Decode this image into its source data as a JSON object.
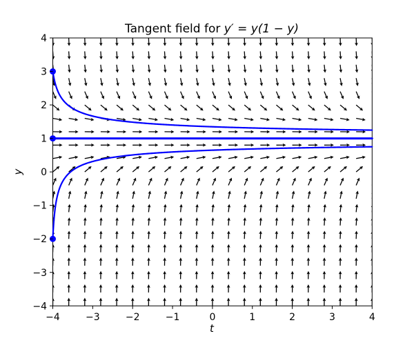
{
  "figure": {
    "title_prefix": "Tangent field for ",
    "title_math": "y′ = y(1 − y)",
    "xlabel": "t",
    "ylabel": "y",
    "background_color": "#ffffff",
    "curve_color": "#0000ff",
    "arrow_color": "#000000",
    "frame_color": "#000000"
  },
  "chart_data": {
    "type": "quiver+line",
    "title": "Tangent field for y′ = y(1 − y)",
    "xlabel": "t",
    "ylabel": "y",
    "xlim": [
      -4,
      4
    ],
    "ylim": [
      -4,
      4
    ],
    "grid": false,
    "legend": false,
    "x_ticks": {
      "values": [
        -4,
        -3,
        -2,
        -1,
        0,
        1,
        2,
        3,
        4
      ],
      "labels": [
        "−4",
        "−3",
        "−2",
        "−1",
        "0",
        "1",
        "2",
        "3",
        "4"
      ]
    },
    "y_ticks": {
      "values": [
        -4,
        -3,
        -2,
        -1,
        0,
        1,
        2,
        3,
        4
      ],
      "labels": [
        "−4",
        "−3",
        "−2",
        "−1",
        "0",
        "1",
        "2",
        "3",
        "4"
      ]
    },
    "quiver": {
      "t_start": -4,
      "t_end": 4,
      "t_step": 0.4,
      "y_start": -4,
      "y_end": 4,
      "y_step": 0.4,
      "pivot": "tail",
      "direction_rendered": "normalized (1, (1-y)^3): horizontal at y=1, tilting down above, up below, near-vertical at |y-1|>2"
    },
    "equilibrium": {
      "y": 1,
      "t_range": [
        -4,
        4
      ],
      "marker_at": [
        -4,
        1
      ]
    },
    "solutions": [
      {
        "t0": -4,
        "y0": 3,
        "u0": 2,
        "marker": true,
        "samples": [
          [
            -4,
            3.0
          ],
          [
            -3.75,
            2.15
          ],
          [
            -3.5,
            2.0
          ],
          [
            -3,
            1.67
          ],
          [
            -2.5,
            1.55
          ],
          [
            -2,
            1.49
          ],
          [
            -1,
            1.4
          ],
          [
            0,
            1.35
          ],
          [
            1,
            1.31
          ],
          [
            2,
            1.29
          ],
          [
            3,
            1.27
          ],
          [
            4,
            1.25
          ]
        ]
      },
      {
        "t0": -4,
        "y0": 1,
        "u0": 0,
        "marker": true,
        "samples": [
          [
            -4,
            1.0
          ],
          [
            0,
            1.0
          ],
          [
            4,
            1.0
          ]
        ]
      },
      {
        "t0": -4,
        "y0": -2,
        "u0": -3,
        "marker": true,
        "samples": [
          [
            -4,
            -2.0
          ],
          [
            -3.9,
            -0.45
          ],
          [
            -3.5,
            0.05
          ],
          [
            -3,
            0.31
          ],
          [
            -2.5,
            0.43
          ],
          [
            -2,
            0.51
          ],
          [
            -1,
            0.6
          ],
          [
            0,
            0.65
          ],
          [
            1,
            0.69
          ],
          [
            2,
            0.71
          ],
          [
            3,
            0.73
          ],
          [
            4,
            0.75
          ]
        ]
      }
    ],
    "solution_formula_rendered": "y(t) = 1 + u0 / sqrt(1 + 2*u0^2*(t+4))"
  }
}
